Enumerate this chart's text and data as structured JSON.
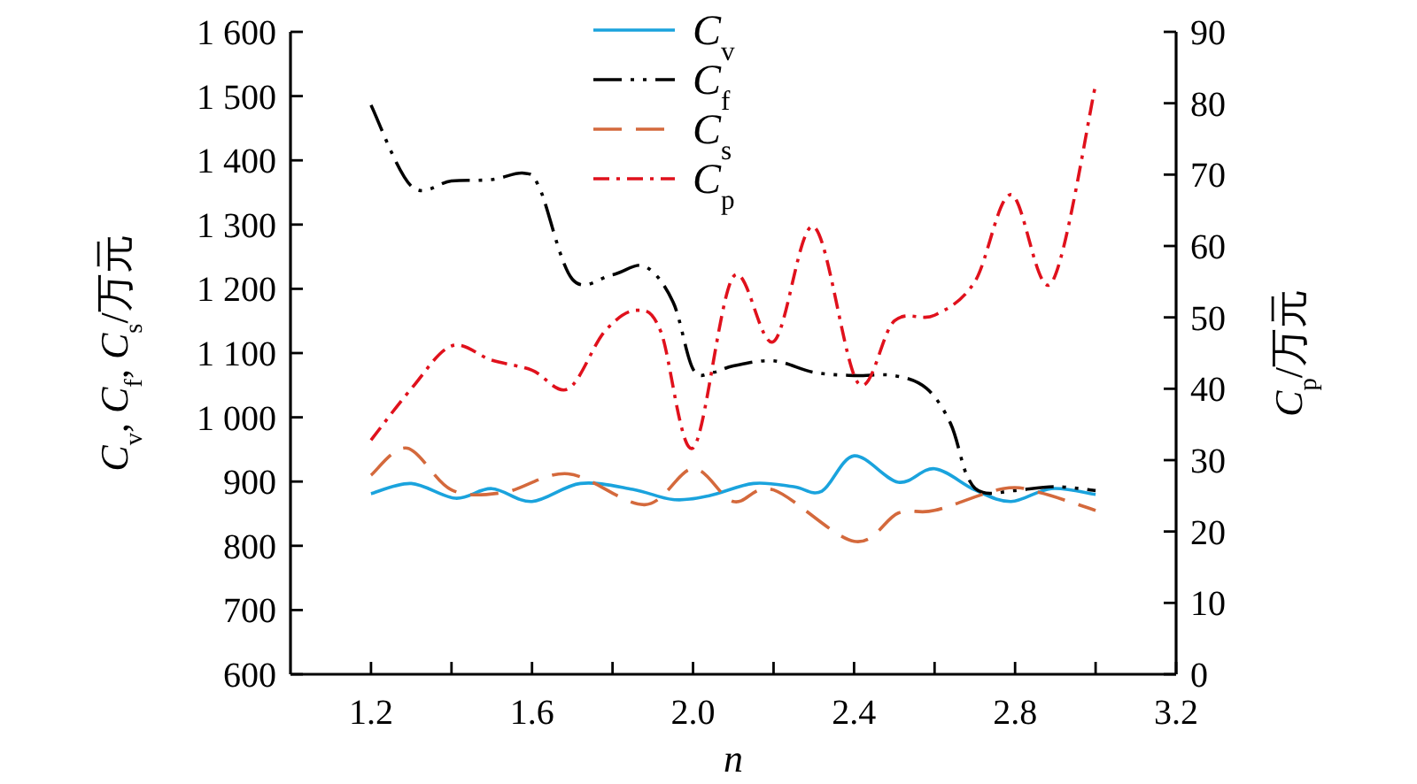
{
  "chart_data": {
    "type": "line",
    "xlabel": "n",
    "ylabel": "*C*$_{v}$, *C*$_{f}$, *C*$_{s}$/万元",
    "y2label": "*C*$_{p}$/万元",
    "xlim": [
      1.0,
      3.2
    ],
    "xticks": [
      1.2,
      {
        "value": 1.4,
        "label": null
      },
      1.6,
      {
        "value": 1.8,
        "label": null
      },
      {
        "value": 2.0,
        "label": "2.0"
      },
      {
        "value": 2.2,
        "label": null
      },
      2.4,
      {
        "value": 2.6,
        "label": null
      },
      2.8,
      {
        "value": 3.0,
        "label": null
      },
      3.2
    ],
    "ylim": [
      600,
      1600
    ],
    "yticks": [
      600,
      700,
      800,
      900,
      {
        "value": 1000,
        "label": "1 000"
      },
      {
        "value": 1100,
        "label": "1 100"
      },
      {
        "value": 1200,
        "label": "1 200"
      },
      {
        "value": 1300,
        "label": "1 300"
      },
      {
        "value": 1400,
        "label": "1 400"
      },
      {
        "value": 1500,
        "label": "1 500"
      },
      {
        "value": 1600,
        "label": "1 600"
      }
    ],
    "y2lim": [
      0,
      90
    ],
    "y2ticks": [
      0,
      10,
      20,
      30,
      40,
      50,
      60,
      70,
      80,
      90
    ],
    "legend": "top",
    "grid": false,
    "series": [
      {
        "name": "*C*$_{v}$",
        "color": "#1aa3dd",
        "line_style": "solid",
        "x": [
          1.2,
          1.3,
          1.41,
          1.5,
          1.6,
          1.72,
          1.85,
          1.95,
          2.04,
          2.15,
          2.25,
          2.32,
          2.4,
          2.51,
          2.6,
          2.7,
          2.79,
          2.89,
          3.0
        ],
        "values": [
          881,
          897,
          874,
          889,
          869,
          897,
          888,
          872,
          878,
          897,
          892,
          885,
          940,
          899,
          920,
          887,
          869,
          889,
          880
        ]
      },
      {
        "name": "*C*$_{f}$",
        "color": "#000000",
        "line_style": "dashdotdot",
        "x": [
          1.2,
          1.3,
          1.4,
          1.5,
          1.58,
          1.62,
          1.7,
          1.8,
          1.88,
          1.95,
          2.0,
          2.05,
          2.1,
          2.2,
          2.3,
          2.4,
          2.5,
          2.58,
          2.64,
          2.68,
          2.72,
          2.8,
          2.9,
          3.0
        ],
        "values": [
          1486,
          1360,
          1368,
          1370,
          1380,
          1355,
          1215,
          1222,
          1235,
          1180,
          1075,
          1070,
          1080,
          1088,
          1070,
          1065,
          1065,
          1045,
          990,
          910,
          883,
          886,
          892,
          886
        ]
      },
      {
        "name": "*C*$_{s}$",
        "color": "#d4693c",
        "line_style": "dashed",
        "x": [
          1.2,
          1.29,
          1.4,
          1.53,
          1.69,
          1.88,
          2.0,
          2.1,
          2.2,
          2.4,
          2.51,
          2.6,
          2.77,
          2.86,
          3.0
        ],
        "values": [
          910,
          952,
          887,
          883,
          912,
          864,
          920,
          869,
          887,
          807,
          851,
          855,
          889,
          883,
          855
        ]
      },
      {
        "name": "*C*$_{p}$",
        "color": "#e0111c",
        "line_style": "dashdot",
        "axis": "y2",
        "x": [
          1.2,
          1.3,
          1.4,
          1.5,
          1.6,
          1.69,
          1.78,
          1.86,
          1.92,
          2.0,
          2.1,
          2.2,
          2.3,
          2.41,
          2.5,
          2.6,
          2.7,
          2.79,
          2.89,
          3.0
        ],
        "values": [
          32.8,
          40,
          46,
          44,
          42.6,
          40,
          48,
          51,
          48,
          31.7,
          55.7,
          46.6,
          62.7,
          40.8,
          49.5,
          50.3,
          55,
          67.2,
          54.8,
          82.6
        ]
      }
    ]
  }
}
